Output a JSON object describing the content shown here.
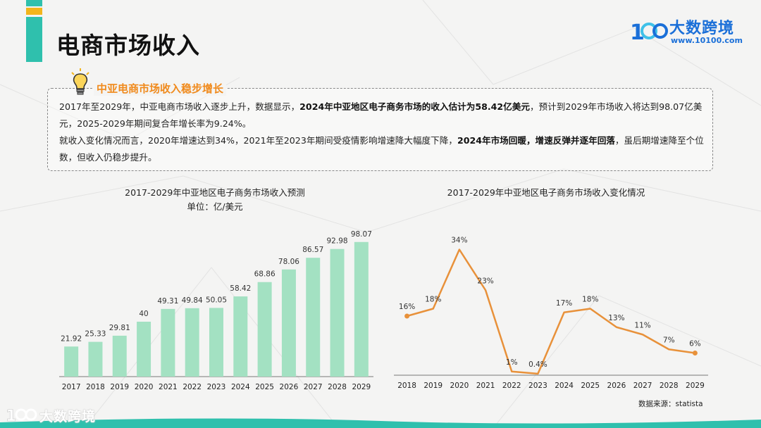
{
  "page_title": "电商市场收入",
  "logo": {
    "name": "大数跨境",
    "url": "www.10100.com"
  },
  "summary": {
    "heading": "中亚电商市场收入稳步增长",
    "p1_a": "2017年至2029年，中亚电商市场收入逐步上升，数据显示，",
    "p1_b": "2024年中亚地区电子商务市场的收入估计为58.42亿美元",
    "p1_c": "，预计到2029年市场收入将达到98.07亿美元，2025-2029年期间复合年增长率为9.24%。",
    "p2_a": "就收入变化情况而言，2020年增速达到34%，2021年至2023年期间受疫情影响增速降大幅度下降，",
    "p2_b": "2024年市场回暖，增速反弹并逐年回落",
    "p2_c": "，虽后期增速降至个位数，但收入仍稳步提升。"
  },
  "source_note": "数据来源：statista",
  "footer": {
    "brand": "大数跨境"
  },
  "colors": {
    "teal": "#2fc0ad",
    "gold": "#f2b51c",
    "bar": "#a3e1c2",
    "line": "#e8913a",
    "heading": "#f08a1c",
    "brand": "#1a6fd8"
  },
  "chart_data": [
    {
      "type": "bar",
      "title": "2017-2029年中亚地区电子商务市场收入预测",
      "subtitle": "单位：亿/美元",
      "categories": [
        "2017",
        "2018",
        "2019",
        "2020",
        "2021",
        "2022",
        "2023",
        "2024",
        "2025",
        "2026",
        "2027",
        "2028",
        "2029"
      ],
      "values": [
        21.92,
        25.33,
        29.81,
        40,
        49.31,
        49.84,
        50.05,
        58.42,
        68.86,
        78.06,
        86.57,
        92.98,
        98.07
      ],
      "value_labels": [
        "21.92",
        "25.33",
        "29.81",
        "40",
        "49.31",
        "49.84",
        "50.05",
        "58.42",
        "68.86",
        "78.06",
        "86.57",
        "92.98",
        "98.07"
      ],
      "ylim": [
        0,
        100
      ],
      "grid": false,
      "legend": "none"
    },
    {
      "type": "line",
      "title": "2017-2029年中亚地区电子商务市场收入变化情况",
      "categories": [
        "2018",
        "2019",
        "2020",
        "2021",
        "2022",
        "2023",
        "2024",
        "2025",
        "2026",
        "2027",
        "2028",
        "2029"
      ],
      "values": [
        16,
        18,
        34,
        23,
        1,
        0.4,
        17,
        18,
        13,
        11,
        7,
        6
      ],
      "value_labels": [
        "16%",
        "18%",
        "34%",
        "23%",
        "1%",
        "0.4%",
        "17%",
        "18%",
        "13%",
        "11%",
        "7%",
        "6%"
      ],
      "ylim": [
        0,
        36
      ],
      "grid": false,
      "legend": "none"
    }
  ]
}
